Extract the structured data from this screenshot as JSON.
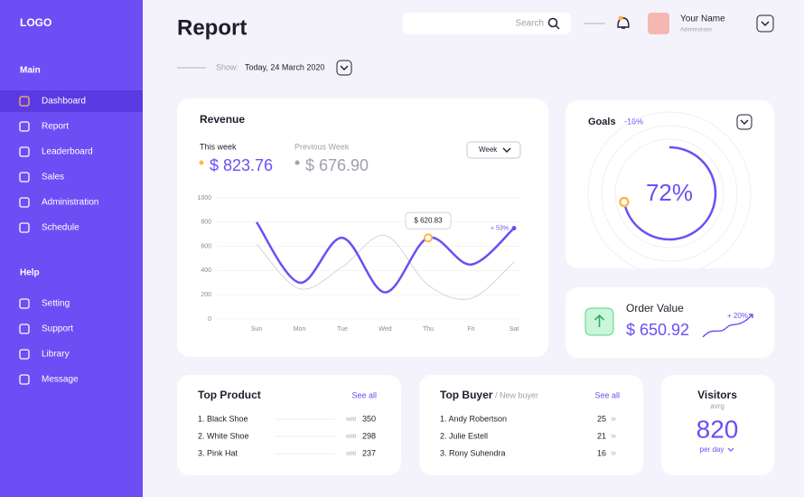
{
  "sidebar": {
    "logo": "LOGO",
    "sections": [
      {
        "title": "Main",
        "items": [
          {
            "label": "Dashboard",
            "active": true
          },
          {
            "label": "Report"
          },
          {
            "label": "Leaderboard"
          },
          {
            "label": "Sales"
          },
          {
            "label": "Administration"
          },
          {
            "label": "Schedule"
          }
        ]
      },
      {
        "title": "Help",
        "items": [
          {
            "label": "Setting"
          },
          {
            "label": "Support"
          },
          {
            "label": "Library"
          },
          {
            "label": "Message"
          }
        ]
      }
    ]
  },
  "header": {
    "title": "Report",
    "search": "Search",
    "user_name": "Your Name",
    "user_role": "Administrator",
    "show_label": "Show:",
    "date": "Today, 24 March 2020"
  },
  "revenue": {
    "title": "Revenue",
    "period": "Week",
    "this_week_value": "$ 823.76",
    "previous_week_value": "$ 676.90"
  },
  "chart_data": {
    "type": "line",
    "categories": [
      "Sun",
      "Mon",
      "Tue",
      "Wed",
      "Thu",
      "Fri",
      "Sat"
    ],
    "series": [
      {
        "name": "This week",
        "color": "#6c4ef5",
        "values": [
          800,
          300,
          670,
          220,
          670,
          450,
          750
        ]
      },
      {
        "name": "Previous Week",
        "color": "#d4d4da",
        "values": [
          620,
          250,
          430,
          690,
          280,
          170,
          470
        ]
      }
    ],
    "ylim": [
      0,
      1000
    ],
    "yticks": [
      0,
      200,
      400,
      600,
      800,
      1000
    ],
    "grid": true,
    "tooltip": "$ 620.83",
    "annotation": "+ 53%"
  },
  "goals": {
    "title": "Goals",
    "change": "-16%",
    "value": 72,
    "value_label": "72%",
    "color": "#6c4ef5"
  },
  "order_value": {
    "title": "Order Value",
    "value": "$ 650.92",
    "change": "+ 20%"
  },
  "top_product": {
    "title": "Top Product",
    "link": "See all",
    "rows": [
      {
        "name": "1. Black Shoe",
        "unit": "sold",
        "value": 350
      },
      {
        "name": "2. White Shoe",
        "unit": "sold",
        "value": 298
      },
      {
        "name": "3. Pink Hat",
        "unit": "sold",
        "value": 237
      }
    ]
  },
  "top_buyer": {
    "title": "Top Buyer",
    "subtitle": "/ New buyer",
    "link": "See all",
    "rows": [
      {
        "name": "1. Andy Robertson",
        "unit": "tx",
        "value": 25
      },
      {
        "name": "2. Julie Estell",
        "unit": "tx",
        "value": 21
      },
      {
        "name": "3. Rony Suhendra",
        "unit": "tx",
        "value": 16
      }
    ]
  },
  "visitors": {
    "title": "Visitors",
    "subtitle": "avrg",
    "value": 820,
    "period": "per day"
  }
}
